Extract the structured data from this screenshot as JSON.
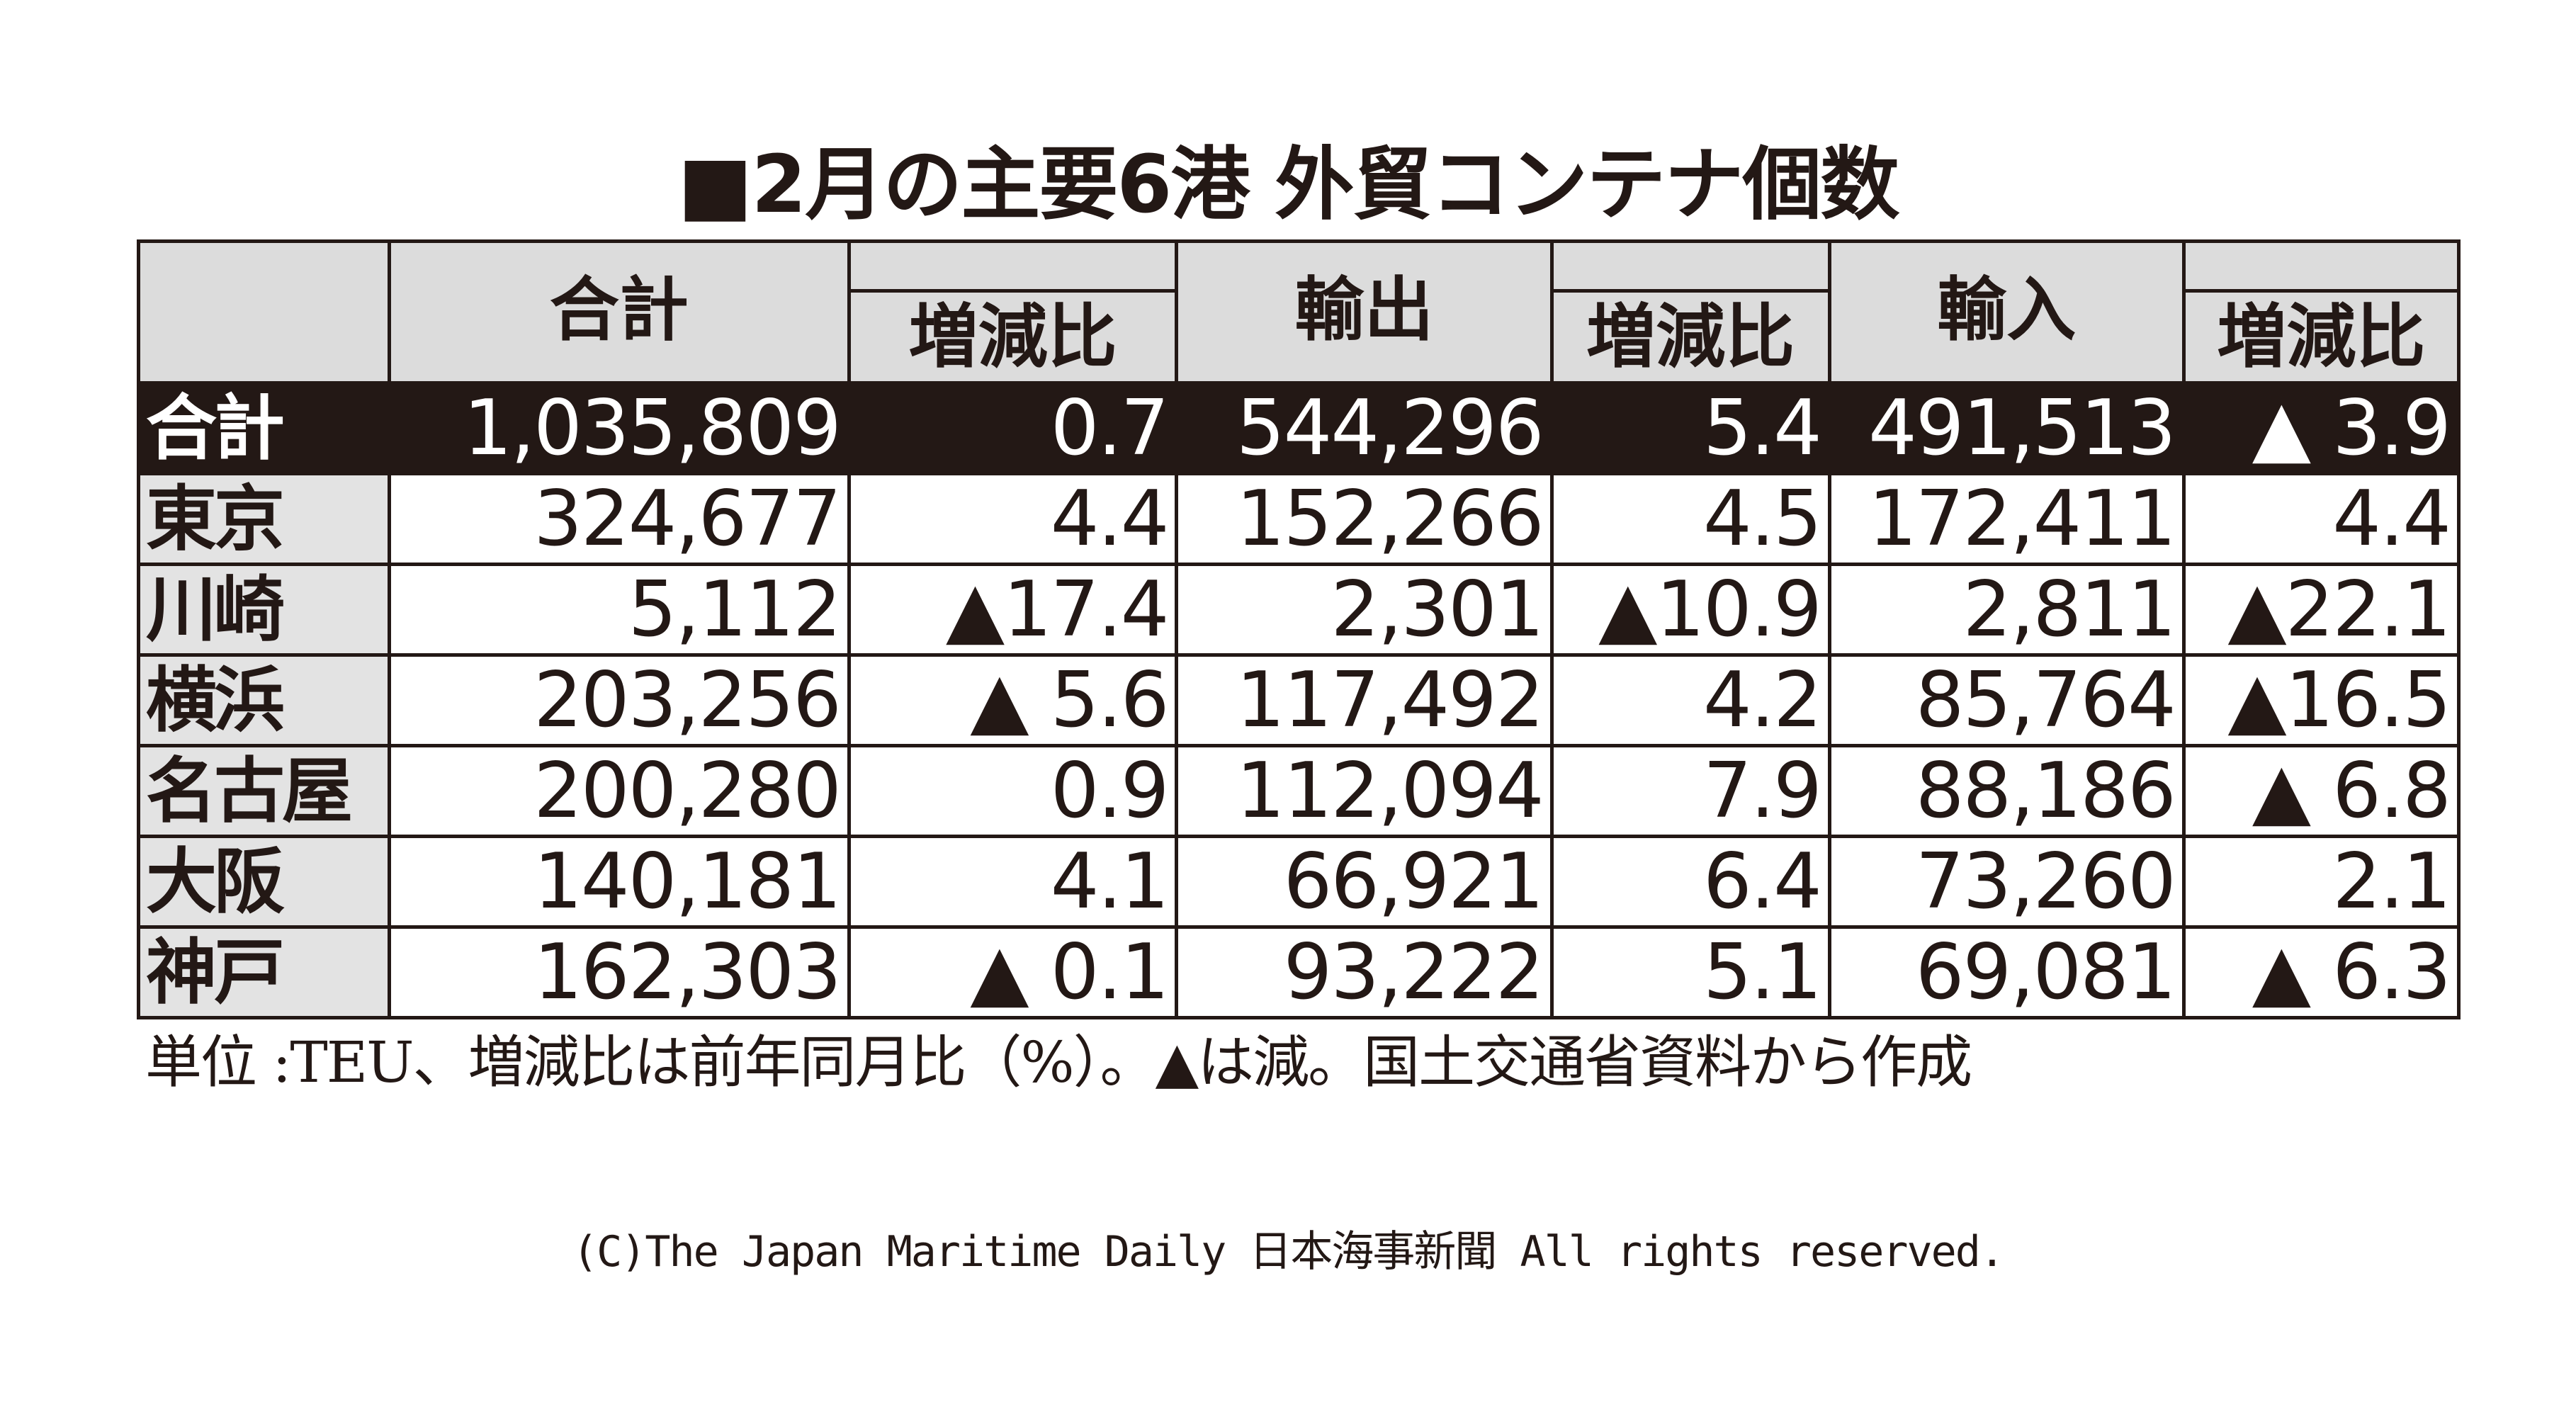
{
  "chart_data": {
    "type": "table",
    "title": "■2月の主要6港 外貿コンテナ個数",
    "headers": {
      "total": "合計",
      "export": "輸出",
      "import": "輸入",
      "change": "増減比"
    },
    "rows": [
      {
        "port": "合計",
        "total": "1,035,809",
        "total_change": "0.7",
        "export": "544,296",
        "export_change": "5.4",
        "import": "491,513",
        "import_change": "▲ 3.9"
      },
      {
        "port": "東京",
        "total": "324,677",
        "total_change": "4.4",
        "export": "152,266",
        "export_change": "4.5",
        "import": "172,411",
        "import_change": "4.4"
      },
      {
        "port": "川崎",
        "total": "5,112",
        "total_change": "▲17.4",
        "export": "2,301",
        "export_change": "▲10.9",
        "import": "2,811",
        "import_change": "▲22.1"
      },
      {
        "port": "横浜",
        "total": "203,256",
        "total_change": "▲ 5.6",
        "export": "117,492",
        "export_change": "4.2",
        "import": "85,764",
        "import_change": "▲16.5"
      },
      {
        "port": "名古屋",
        "total": "200,280",
        "total_change": "0.9",
        "export": "112,094",
        "export_change": "7.9",
        "import": "88,186",
        "import_change": "▲ 6.8"
      },
      {
        "port": "大阪",
        "total": "140,181",
        "total_change": "4.1",
        "export": "66,921",
        "export_change": "6.4",
        "import": "73,260",
        "import_change": "2.1"
      },
      {
        "port": "神戸",
        "total": "162,303",
        "total_change": "▲ 0.1",
        "export": "93,222",
        "export_change": "5.1",
        "import": "69,081",
        "import_change": "▲ 6.3"
      }
    ],
    "note": "単位 :TEU、増減比は前年同月比（%）。▲は減。国土交通省資料から作成"
  },
  "footer": {
    "copyright": "(C)The Japan Maritime Daily 日本海事新聞 All rights reserved."
  }
}
